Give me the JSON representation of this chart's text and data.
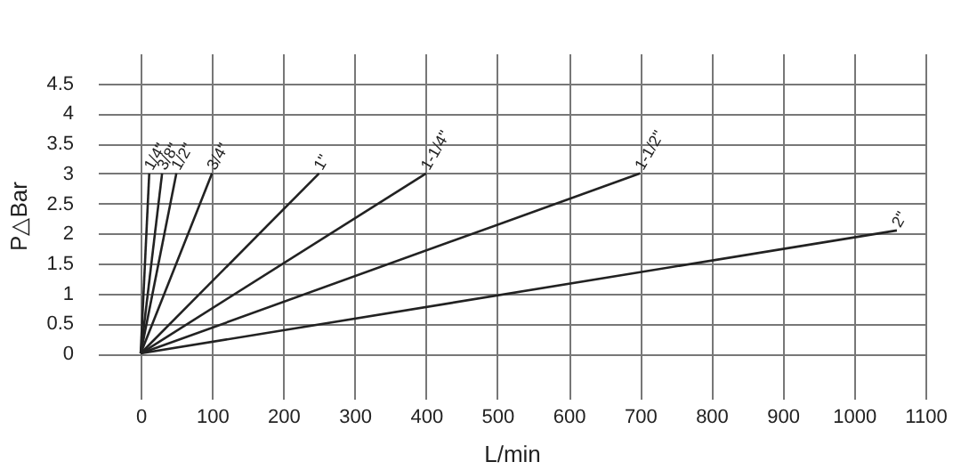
{
  "chart_data": {
    "type": "line",
    "xlabel": "L/min",
    "ylabel": "P△Bar",
    "xlim": [
      -60,
      1100
    ],
    "xticks": [
      0,
      100,
      200,
      300,
      400,
      500,
      600,
      700,
      800,
      900,
      1000,
      1100
    ],
    "ylim": [
      -0.4,
      5
    ],
    "yticks": [
      0,
      0.5,
      1,
      1.5,
      2,
      2.5,
      3,
      3.5,
      4,
      4.5
    ],
    "grid": true,
    "legend": false,
    "marker": "none",
    "line_style": "solid",
    "series": [
      {
        "name": "1/4\"",
        "color": "#222222",
        "x": [
          0,
          12
        ],
        "values": [
          0,
          3
        ]
      },
      {
        "name": "3/8\"",
        "color": "#222222",
        "x": [
          0,
          30
        ],
        "values": [
          0,
          3
        ]
      },
      {
        "name": "1/2\"",
        "color": "#222222",
        "x": [
          0,
          50
        ],
        "values": [
          0,
          3
        ]
      },
      {
        "name": "3/4\"",
        "color": "#222222",
        "x": [
          0,
          100
        ],
        "values": [
          0,
          3
        ]
      },
      {
        "name": "1\"",
        "color": "#222222",
        "x": [
          0,
          250
        ],
        "values": [
          0,
          3
        ]
      },
      {
        "name": "1-1/4\"",
        "color": "#222222",
        "x": [
          0,
          400
        ],
        "values": [
          0,
          3
        ]
      },
      {
        "name": "1-1/2\"",
        "color": "#222222",
        "x": [
          0,
          700
        ],
        "values": [
          0,
          3
        ]
      },
      {
        "name": "2\"",
        "color": "#222222",
        "x": [
          0,
          1060
        ],
        "values": [
          0,
          2.05
        ]
      }
    ]
  }
}
